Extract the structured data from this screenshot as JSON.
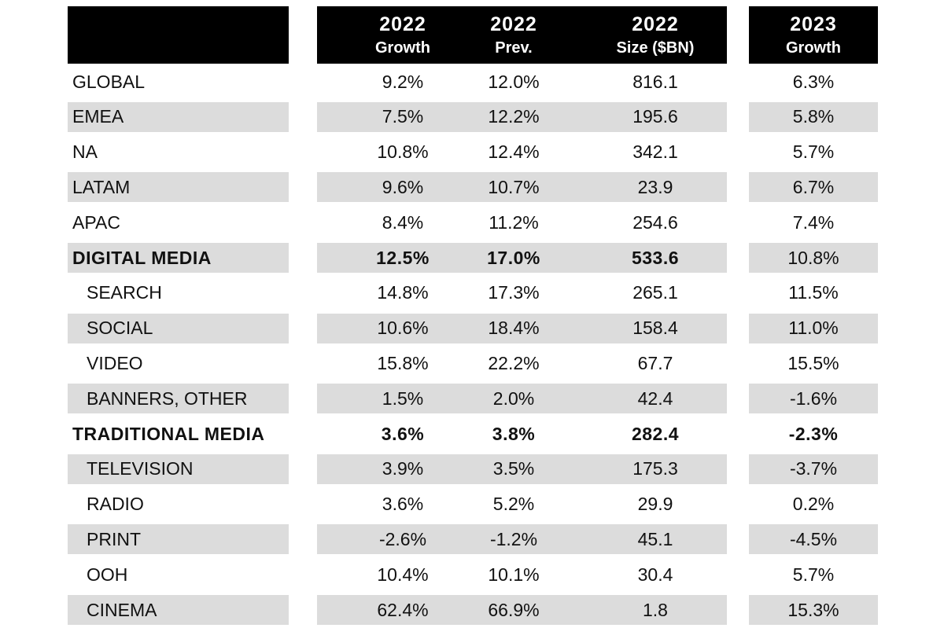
{
  "header": {
    "columns": [
      {
        "line1": "2022",
        "line2": "Growth"
      },
      {
        "line1": "2022",
        "line2": "Prev."
      },
      {
        "line1": "2022",
        "line2": "Size ($BN)"
      },
      {
        "line1": "2023",
        "line2": "Growth"
      }
    ]
  },
  "rows": [
    {
      "label": "GLOBAL",
      "values": [
        "9.2%",
        "12.0%",
        "816.1",
        "6.3%"
      ],
      "bold": [
        false,
        false,
        false,
        false
      ],
      "indent": false,
      "label_bold": false
    },
    {
      "label": "EMEA",
      "values": [
        "7.5%",
        "12.2%",
        "195.6",
        "5.8%"
      ],
      "bold": [
        false,
        false,
        false,
        false
      ],
      "indent": false,
      "label_bold": false
    },
    {
      "label": "NA",
      "values": [
        "10.8%",
        "12.4%",
        "342.1",
        "5.7%"
      ],
      "bold": [
        false,
        false,
        false,
        false
      ],
      "indent": false,
      "label_bold": false
    },
    {
      "label": "LATAM",
      "values": [
        "9.6%",
        "10.7%",
        "23.9",
        "6.7%"
      ],
      "bold": [
        false,
        false,
        false,
        false
      ],
      "indent": false,
      "label_bold": false
    },
    {
      "label": "APAC",
      "values": [
        "8.4%",
        "11.2%",
        "254.6",
        "7.4%"
      ],
      "bold": [
        false,
        false,
        false,
        false
      ],
      "indent": false,
      "label_bold": false
    },
    {
      "label": "DIGITAL MEDIA",
      "values": [
        "12.5%",
        "17.0%",
        "533.6",
        "10.8%"
      ],
      "bold": [
        true,
        true,
        true,
        false
      ],
      "indent": false,
      "label_bold": true
    },
    {
      "label": "SEARCH",
      "values": [
        "14.8%",
        "17.3%",
        "265.1",
        "11.5%"
      ],
      "bold": [
        false,
        false,
        false,
        false
      ],
      "indent": true,
      "label_bold": false
    },
    {
      "label": "SOCIAL",
      "values": [
        "10.6%",
        "18.4%",
        "158.4",
        "11.0%"
      ],
      "bold": [
        false,
        false,
        false,
        false
      ],
      "indent": true,
      "label_bold": false
    },
    {
      "label": "VIDEO",
      "values": [
        "15.8%",
        "22.2%",
        "67.7",
        "15.5%"
      ],
      "bold": [
        false,
        false,
        false,
        false
      ],
      "indent": true,
      "label_bold": false
    },
    {
      "label": "BANNERS, OTHER",
      "values": [
        "1.5%",
        "2.0%",
        "42.4",
        "-1.6%"
      ],
      "bold": [
        false,
        false,
        false,
        false
      ],
      "indent": true,
      "label_bold": false
    },
    {
      "label": "TRADITIONAL MEDIA",
      "values": [
        "3.6%",
        "3.8%",
        "282.4",
        "-2.3%"
      ],
      "bold": [
        true,
        true,
        true,
        true
      ],
      "indent": false,
      "label_bold": true
    },
    {
      "label": "TELEVISION",
      "values": [
        "3.9%",
        "3.5%",
        "175.3",
        "-3.7%"
      ],
      "bold": [
        false,
        false,
        false,
        false
      ],
      "indent": true,
      "label_bold": false
    },
    {
      "label": "RADIO",
      "values": [
        "3.6%",
        "5.2%",
        "29.9",
        "0.2%"
      ],
      "bold": [
        false,
        false,
        false,
        false
      ],
      "indent": true,
      "label_bold": false
    },
    {
      "label": "PRINT",
      "values": [
        "-2.6%",
        "-1.2%",
        "45.1",
        "-4.5%"
      ],
      "bold": [
        false,
        false,
        false,
        false
      ],
      "indent": true,
      "label_bold": false
    },
    {
      "label": "OOH",
      "values": [
        "10.4%",
        "10.1%",
        "30.4",
        "5.7%"
      ],
      "bold": [
        false,
        false,
        false,
        false
      ],
      "indent": true,
      "label_bold": false
    },
    {
      "label": "CINEMA",
      "values": [
        "62.4%",
        "66.9%",
        "1.8",
        "15.3%"
      ],
      "bold": [
        false,
        false,
        false,
        false
      ],
      "indent": true,
      "label_bold": false
    }
  ],
  "colors": {
    "header_bg": "#000000",
    "header_text": "#ffffff",
    "row_shade": "#dcdcdc"
  }
}
